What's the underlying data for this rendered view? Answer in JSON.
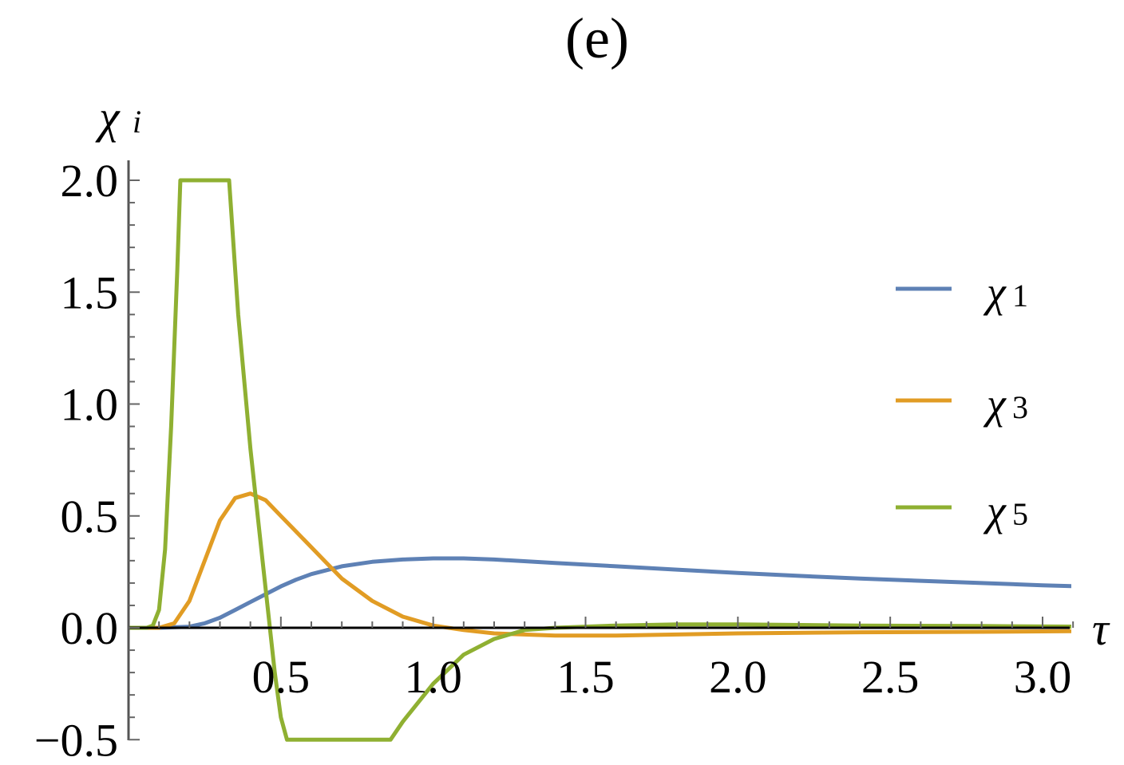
{
  "chart_data": {
    "type": "line",
    "title": "(e)",
    "xlabel": "τ",
    "ylabel": {
      "base": "χ",
      "sub": "i"
    },
    "xlim": [
      0,
      3.12
    ],
    "ylim": [
      -0.5,
      2.0
    ],
    "xticks": [
      "0.5",
      "1.0",
      "1.5",
      "2.0",
      "2.5",
      "3.0"
    ],
    "xtick_values": [
      0.5,
      1.0,
      1.5,
      2.0,
      2.5,
      3.0
    ],
    "yticks": [
      "−0.5",
      "0.0",
      "0.5",
      "1.0",
      "1.5",
      "2.0"
    ],
    "ytick_values": [
      -0.5,
      0.0,
      0.5,
      1.0,
      1.5,
      2.0
    ],
    "legend_position": "right",
    "series": [
      {
        "name": "χ1",
        "base": "χ",
        "sub": "1",
        "color": "#5E81B5",
        "x": [
          0.0,
          0.1,
          0.2,
          0.25,
          0.3,
          0.35,
          0.4,
          0.45,
          0.5,
          0.55,
          0.6,
          0.7,
          0.8,
          0.9,
          1.0,
          1.1,
          1.2,
          1.4,
          1.6,
          1.8,
          2.0,
          2.2,
          2.4,
          2.6,
          2.8,
          3.0,
          3.12
        ],
        "y": [
          0.0,
          0.0,
          0.005,
          0.02,
          0.045,
          0.08,
          0.115,
          0.15,
          0.185,
          0.215,
          0.24,
          0.275,
          0.295,
          0.305,
          0.31,
          0.31,
          0.305,
          0.29,
          0.275,
          0.26,
          0.245,
          0.232,
          0.22,
          0.21,
          0.2,
          0.19,
          0.185
        ]
      },
      {
        "name": "χ3",
        "base": "χ",
        "sub": "3",
        "color": "#E19C24",
        "x": [
          0.0,
          0.1,
          0.15,
          0.2,
          0.25,
          0.3,
          0.35,
          0.4,
          0.45,
          0.5,
          0.55,
          0.6,
          0.65,
          0.7,
          0.8,
          0.9,
          1.0,
          1.1,
          1.2,
          1.4,
          1.6,
          1.8,
          2.0,
          2.4,
          2.8,
          3.12
        ],
        "y": [
          0.0,
          0.0,
          0.02,
          0.12,
          0.3,
          0.48,
          0.58,
          0.6,
          0.57,
          0.5,
          0.43,
          0.36,
          0.29,
          0.22,
          0.12,
          0.05,
          0.01,
          -0.01,
          -0.025,
          -0.035,
          -0.035,
          -0.03,
          -0.025,
          -0.02,
          -0.018,
          -0.015
        ]
      },
      {
        "name": "χ5",
        "base": "χ",
        "sub": "5",
        "color": "#8FB032",
        "x": [
          0.0,
          0.06,
          0.08,
          0.1,
          0.12,
          0.14,
          0.16,
          0.17,
          0.33,
          0.36,
          0.4,
          0.44,
          0.48,
          0.5,
          0.52,
          0.86,
          0.9,
          1.0,
          1.1,
          1.2,
          1.3,
          1.4,
          1.6,
          1.8,
          2.0,
          2.4,
          2.8,
          3.12
        ],
        "y": [
          0.0,
          0.0,
          0.01,
          0.08,
          0.35,
          0.9,
          1.6,
          2.0,
          2.0,
          1.4,
          0.8,
          0.3,
          -0.2,
          -0.4,
          -0.5,
          -0.5,
          -0.42,
          -0.25,
          -0.12,
          -0.05,
          -0.01,
          0.0,
          0.01,
          0.015,
          0.015,
          0.01,
          0.008,
          0.005
        ]
      }
    ]
  }
}
